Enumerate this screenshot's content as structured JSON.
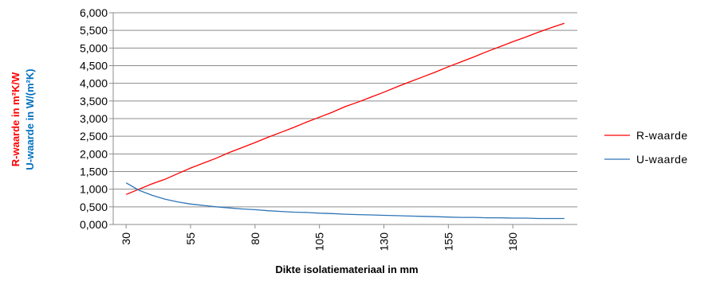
{
  "chart_data": {
    "type": "line",
    "xlabel": "Dikte isolatiemateriaal  in mm",
    "ylabel_lines": [
      {
        "text": "R-waarde in m²K/W",
        "color": "#ff0000"
      },
      {
        "text": "U-waarde in W/(m²K)",
        "color": "#0070c0"
      }
    ],
    "ylim": [
      0,
      6
    ],
    "y_ticks": [
      "0,000",
      "0,500",
      "1,000",
      "1,500",
      "2,000",
      "2,500",
      "3,000",
      "3,500",
      "4,000",
      "4,500",
      "5,000",
      "5,500",
      "6,000"
    ],
    "x_ticks": [
      "30",
      "55",
      "80",
      "105",
      "130",
      "155",
      "180"
    ],
    "x": [
      30,
      35,
      40,
      45,
      50,
      55,
      60,
      65,
      70,
      75,
      80,
      85,
      90,
      95,
      100,
      105,
      110,
      115,
      120,
      125,
      130,
      135,
      140,
      145,
      150,
      155,
      160,
      165,
      170,
      175,
      180,
      185,
      190,
      195,
      200
    ],
    "grid": true,
    "legend_position": "right",
    "series": [
      {
        "name": "R-waarde",
        "color": "#ff0000",
        "values": [
          0.85,
          1.0,
          1.15,
          1.28,
          1.44,
          1.6,
          1.74,
          1.88,
          2.04,
          2.18,
          2.32,
          2.47,
          2.61,
          2.75,
          2.9,
          3.04,
          3.18,
          3.34,
          3.47,
          3.61,
          3.75,
          3.9,
          4.04,
          4.18,
          4.32,
          4.47,
          4.61,
          4.75,
          4.9,
          5.04,
          5.18,
          5.31,
          5.45,
          5.58,
          5.7
        ]
      },
      {
        "name": "U-waarde",
        "color": "#2e75b6",
        "values": [
          1.18,
          0.97,
          0.83,
          0.72,
          0.64,
          0.58,
          0.54,
          0.5,
          0.47,
          0.44,
          0.42,
          0.39,
          0.37,
          0.35,
          0.34,
          0.32,
          0.31,
          0.29,
          0.28,
          0.27,
          0.26,
          0.25,
          0.24,
          0.23,
          0.22,
          0.21,
          0.2,
          0.2,
          0.19,
          0.19,
          0.18,
          0.18,
          0.17,
          0.17,
          0.17
        ]
      }
    ]
  }
}
